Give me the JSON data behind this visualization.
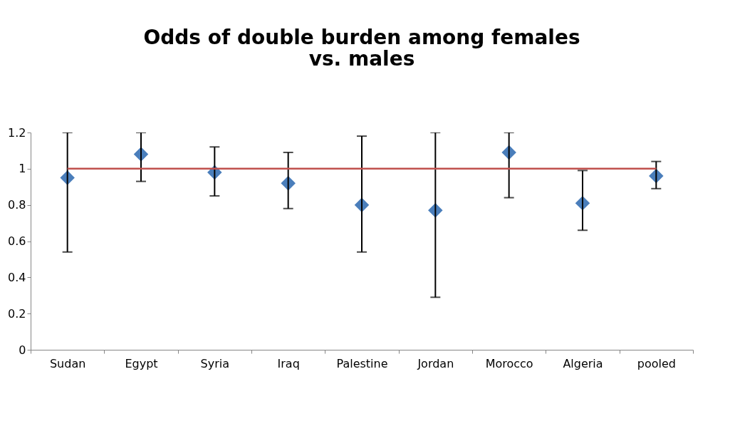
{
  "chart_data": {
    "type": "scatter",
    "title": "Odds of double burden among females vs. males",
    "categories": [
      "Sudan",
      "Egypt",
      "Syria",
      "Iraq",
      "Palestine",
      "Jordan",
      "Morocco",
      "Algeria",
      "pooled"
    ],
    "series": [
      {
        "color": "#4a7ebb",
        "values": [
          0.95,
          1.08,
          0.98,
          0.92,
          0.8,
          0.77,
          1.09,
          0.81,
          0.96
        ],
        "errors": [
          [
            0.54,
            1.2
          ],
          [
            0.93,
            1.2
          ],
          [
            0.85,
            1.12
          ],
          [
            0.78,
            1.09
          ],
          [
            0.54,
            1.18
          ],
          [
            0.29,
            1.2
          ],
          [
            0.84,
            1.2
          ],
          [
            0.66,
            0.99
          ],
          [
            0.89,
            1.04
          ]
        ]
      }
    ],
    "ylim": [
      0,
      1.2
    ],
    "yticks": [
      0,
      0.2,
      0.4,
      0.6,
      0.8,
      1,
      1.2
    ],
    "ref_lines": [
      {
        "axis": "y",
        "value": 1,
        "color": "#c0504d"
      }
    ],
    "marker": "diamond",
    "grid": false,
    "legend": false
  }
}
